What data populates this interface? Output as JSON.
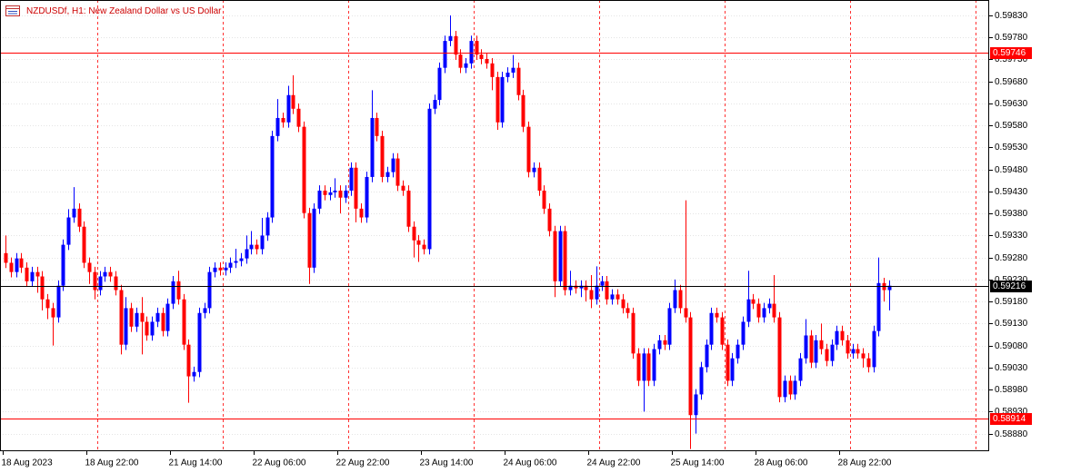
{
  "chart_data": {
    "type": "candlestick",
    "title": "NZDUSDf, H1:  New Zealand Dollar vs US Dollar",
    "categories": [
      "18 Aug 2023",
      null,
      null,
      null,
      null,
      null,
      null,
      null,
      null,
      null,
      null,
      null,
      null,
      null,
      null,
      null,
      "18 Aug 22:00",
      null,
      null,
      null,
      null,
      null,
      null,
      null,
      null,
      null,
      null,
      null,
      null,
      null,
      null,
      null,
      "21 Aug 14:00",
      null,
      null,
      null,
      null,
      null,
      null,
      null,
      null,
      null,
      null,
      null,
      null,
      null,
      null,
      null,
      "22 Aug 06:00",
      null,
      null,
      null,
      null,
      null,
      null,
      null,
      null,
      null,
      null,
      null,
      null,
      null,
      null,
      null,
      "22 Aug 22:00",
      null,
      null,
      null,
      null,
      null,
      null,
      null,
      null,
      null,
      null,
      null,
      null,
      null,
      null,
      null,
      "23 Aug 14:00",
      null,
      null,
      null,
      null,
      null,
      null,
      null,
      null,
      null,
      null,
      null,
      null,
      null,
      null,
      null,
      "24 Aug 06:00",
      null,
      null,
      null,
      null,
      null,
      null,
      null,
      null,
      null,
      null,
      null,
      null,
      null,
      null,
      null,
      "24 Aug 22:00",
      null,
      null,
      null,
      null,
      null,
      null,
      null,
      null,
      null,
      null,
      null,
      null,
      null,
      null,
      null,
      "25 Aug 14:00",
      null,
      null,
      null,
      null,
      null,
      null,
      null,
      null,
      null,
      null,
      null,
      null,
      null,
      null,
      null,
      "28 Aug 06:00",
      null,
      null,
      null,
      null,
      null,
      null,
      null,
      null,
      null,
      null,
      null,
      null,
      null,
      null,
      null,
      "28 Aug 22:00",
      null,
      null,
      null,
      null,
      null,
      null,
      null,
      null,
      null
    ],
    "open": [
      0.5929,
      0.59268,
      0.59247,
      0.59278,
      0.59257,
      0.59226,
      0.59247,
      0.59237,
      0.59185,
      0.59165,
      0.59144,
      0.59216,
      0.59309,
      0.59371,
      0.59391,
      0.5935,
      0.59268,
      0.59247,
      0.59206,
      0.59237,
      0.59247,
      0.59237,
      0.59206,
      0.59082,
      0.59165,
      0.59123,
      0.59154,
      0.59134,
      0.59103,
      0.59134,
      0.59154,
      0.59113,
      0.59175,
      0.59226,
      0.59185,
      0.59082,
      0.5901,
      0.5902,
      0.59154,
      0.59165,
      0.59247,
      0.59257,
      0.59251,
      0.59257,
      0.59268,
      0.59272,
      0.59278,
      0.59299,
      0.59309,
      0.59299,
      0.5933,
      0.59371,
      0.59556,
      0.59597,
      0.59587,
      0.59649,
      0.59618,
      0.59577,
      0.59381,
      0.59257,
      0.59391,
      0.59432,
      0.59422,
      0.59428,
      0.59432,
      0.59416,
      0.59432,
      0.59484,
      0.59391,
      0.59371,
      0.59463,
      0.59597,
      0.59556,
      0.59463,
      0.59474,
      0.59505,
      0.59443,
      0.59432,
      0.5935,
      0.59319,
      0.59309,
      0.59299,
      0.59618,
      0.59638,
      0.59711,
      0.59772,
      0.59783,
      0.59741,
      0.59711,
      0.59721,
      0.59772,
      0.59741,
      0.59731,
      0.59721,
      0.5969,
      0.59587,
      0.5969,
      0.597,
      0.59711,
      0.59649,
      0.59577,
      0.59474,
      0.59484,
      0.59432,
      0.59391,
      0.5934,
      0.59226,
      0.5934,
      0.59206,
      0.59216,
      0.5921,
      0.59216,
      0.59206,
      0.59185,
      0.59216,
      0.59226,
      0.59185,
      0.59196,
      0.59185,
      0.59165,
      0.59154,
      0.59062,
      0.59,
      0.59062,
      0.59,
      0.59072,
      0.59092,
      0.59082,
      0.59165,
      0.59206,
      0.59165,
      0.59144,
      0.58922,
      0.58969,
      0.59031,
      0.59082,
      0.59154,
      0.59144,
      0.59082,
      0.59,
      0.59051,
      0.59082,
      0.59134,
      0.59185,
      0.59175,
      0.59144,
      0.59165,
      0.59175,
      0.59144,
      0.58963,
      0.59,
      0.58969,
      0.59,
      0.59051,
      0.59103,
      0.59041,
      0.59092,
      0.59072,
      0.59045,
      0.59082,
      0.59113,
      0.59092,
      0.59062,
      0.59072,
      0.59062,
      0.59051,
      0.59031,
      0.59113,
      0.59222,
      0.59206
    ],
    "high": [
      0.5933,
      0.5928,
      0.5929,
      0.5929,
      0.59269,
      0.59259,
      0.59259,
      0.59249,
      0.59197,
      0.59177,
      0.59228,
      0.59321,
      0.5939,
      0.5944,
      0.59403,
      0.59362,
      0.5928,
      0.59259,
      0.59249,
      0.59259,
      0.59259,
      0.59249,
      0.59218,
      0.5919,
      0.59177,
      0.59166,
      0.5919,
      0.59146,
      0.59146,
      0.59166,
      0.59166,
      0.59187,
      0.59238,
      0.5925,
      0.59197,
      0.59094,
      0.59032,
      0.59166,
      0.59177,
      0.59259,
      0.59269,
      0.59269,
      0.59269,
      0.5928,
      0.593,
      0.5929,
      0.5933,
      0.5934,
      0.59321,
      0.5937,
      0.59383,
      0.59568,
      0.5964,
      0.59609,
      0.5967,
      0.59694,
      0.5963,
      0.59589,
      0.59393,
      0.59403,
      0.59444,
      0.59444,
      0.5944,
      0.5946,
      0.59444,
      0.59444,
      0.59496,
      0.59496,
      0.59403,
      0.59475,
      0.5966,
      0.59609,
      0.59568,
      0.59486,
      0.59517,
      0.59517,
      0.59455,
      0.59444,
      0.59362,
      0.59331,
      0.59321,
      0.5963,
      0.5965,
      0.59723,
      0.59784,
      0.5983,
      0.59795,
      0.59753,
      0.59733,
      0.59784,
      0.59784,
      0.59753,
      0.59743,
      0.59733,
      0.59702,
      0.59702,
      0.59712,
      0.5974,
      0.59723,
      0.59661,
      0.59589,
      0.59496,
      0.59496,
      0.59444,
      0.59403,
      0.59352,
      0.59352,
      0.59352,
      0.5925,
      0.59228,
      0.59228,
      0.59228,
      0.5924,
      0.5926,
      0.59238,
      0.59238,
      0.59208,
      0.59208,
      0.59197,
      0.59177,
      0.59166,
      0.59074,
      0.59074,
      0.59074,
      0.59084,
      0.59104,
      0.59104,
      0.59177,
      0.5923,
      0.59218,
      0.5941,
      0.59156,
      0.58981,
      0.59043,
      0.59094,
      0.59166,
      0.59166,
      0.59156,
      0.59094,
      0.59063,
      0.59094,
      0.59146,
      0.5925,
      0.59197,
      0.59187,
      0.59177,
      0.59187,
      0.5924,
      0.59156,
      0.59012,
      0.59012,
      0.59012,
      0.59063,
      0.5914,
      0.59115,
      0.59104,
      0.5913,
      0.59084,
      0.59094,
      0.59125,
      0.59125,
      0.59104,
      0.59084,
      0.59084,
      0.59074,
      0.59063,
      0.59125,
      0.5928,
      0.59234,
      0.59228
    ],
    "low": [
      0.59256,
      0.59235,
      0.59235,
      0.59245,
      0.59214,
      0.59214,
      0.592,
      0.5916,
      0.5914,
      0.5908,
      0.59132,
      0.59204,
      0.59297,
      0.59359,
      0.59338,
      0.59256,
      0.5922,
      0.59185,
      0.59194,
      0.59225,
      0.59225,
      0.59194,
      0.5906,
      0.5907,
      0.59111,
      0.59111,
      0.5906,
      0.59091,
      0.59091,
      0.59122,
      0.59101,
      0.59101,
      0.59163,
      0.59173,
      0.5907,
      0.5895,
      0.58998,
      0.59008,
      0.59142,
      0.59153,
      0.59235,
      0.59239,
      0.59239,
      0.59245,
      0.59256,
      0.5926,
      0.59266,
      0.59287,
      0.59287,
      0.59287,
      0.59318,
      0.59359,
      0.59544,
      0.59575,
      0.59575,
      0.59606,
      0.59565,
      0.59369,
      0.5922,
      0.59245,
      0.59379,
      0.5941,
      0.5941,
      0.59416,
      0.5938,
      0.59404,
      0.5942,
      0.5936,
      0.59359,
      0.59359,
      0.59451,
      0.59544,
      0.59451,
      0.59451,
      0.59462,
      0.59431,
      0.5942,
      0.59338,
      0.5928,
      0.5927,
      0.59287,
      0.59287,
      0.59606,
      0.59626,
      0.59699,
      0.5976,
      0.59729,
      0.59699,
      0.59699,
      0.59709,
      0.59729,
      0.59719,
      0.59709,
      0.5966,
      0.5957,
      0.59575,
      0.59678,
      0.59688,
      0.59637,
      0.59565,
      0.59462,
      0.59462,
      0.5942,
      0.59379,
      0.59328,
      0.5919,
      0.59214,
      0.59194,
      0.59194,
      0.59198,
      0.5919,
      0.5918,
      0.59165,
      0.59173,
      0.59204,
      0.59173,
      0.59173,
      0.59173,
      0.59153,
      0.59142,
      0.5905,
      0.58988,
      0.5893,
      0.58988,
      0.58988,
      0.5906,
      0.5907,
      0.5907,
      0.59154,
      0.59153,
      0.59132,
      0.58845,
      0.5888,
      0.58957,
      0.59019,
      0.5907,
      0.59132,
      0.5907,
      0.58988,
      0.58988,
      0.59039,
      0.5907,
      0.59122,
      0.59163,
      0.59132,
      0.59132,
      0.59153,
      0.59132,
      0.58951,
      0.58951,
      0.58957,
      0.58957,
      0.58988,
      0.59039,
      0.59029,
      0.59029,
      0.5906,
      0.59033,
      0.59033,
      0.5907,
      0.5908,
      0.5905,
      0.5905,
      0.5905,
      0.5903,
      0.59019,
      0.59019,
      0.59101,
      0.5918,
      0.5916
    ],
    "close": [
      0.59268,
      0.59247,
      0.59278,
      0.59257,
      0.59226,
      0.59247,
      0.59237,
      0.59185,
      0.59165,
      0.59144,
      0.59216,
      0.59309,
      0.59371,
      0.59391,
      0.5935,
      0.59268,
      0.59247,
      0.59206,
      0.59237,
      0.59247,
      0.59237,
      0.59206,
      0.59082,
      0.59165,
      0.59123,
      0.59154,
      0.59134,
      0.59103,
      0.59134,
      0.59154,
      0.59113,
      0.59175,
      0.59226,
      0.59185,
      0.59082,
      0.5901,
      0.5902,
      0.59154,
      0.59165,
      0.59247,
      0.59257,
      0.59251,
      0.59257,
      0.59268,
      0.59272,
      0.59278,
      0.59299,
      0.59309,
      0.59299,
      0.5933,
      0.59371,
      0.59556,
      0.59597,
      0.59587,
      0.59649,
      0.59618,
      0.59577,
      0.59381,
      0.59257,
      0.59391,
      0.59432,
      0.59422,
      0.59428,
      0.59432,
      0.59416,
      0.59432,
      0.59484,
      0.59391,
      0.59371,
      0.59463,
      0.59597,
      0.59556,
      0.59463,
      0.59474,
      0.59505,
      0.59443,
      0.59432,
      0.5935,
      0.59319,
      0.59309,
      0.59299,
      0.59618,
      0.59638,
      0.59711,
      0.59772,
      0.59783,
      0.59741,
      0.59711,
      0.59721,
      0.59772,
      0.59741,
      0.59731,
      0.59721,
      0.5969,
      0.59587,
      0.5969,
      0.597,
      0.59711,
      0.59649,
      0.59577,
      0.59474,
      0.59484,
      0.59432,
      0.59391,
      0.5934,
      0.59226,
      0.5934,
      0.59206,
      0.59216,
      0.5921,
      0.59216,
      0.59206,
      0.59185,
      0.59216,
      0.59226,
      0.59185,
      0.59196,
      0.59185,
      0.59165,
      0.59154,
      0.59062,
      0.59,
      0.59062,
      0.59,
      0.59072,
      0.59092,
      0.59082,
      0.59165,
      0.59206,
      0.59165,
      0.59144,
      0.58922,
      0.58969,
      0.59031,
      0.59082,
      0.59154,
      0.59144,
      0.59082,
      0.59,
      0.59051,
      0.59082,
      0.59134,
      0.59185,
      0.59175,
      0.59144,
      0.59165,
      0.59175,
      0.59144,
      0.58963,
      0.59,
      0.58969,
      0.59,
      0.59051,
      0.59103,
      0.59041,
      0.59092,
      0.59072,
      0.59045,
      0.59082,
      0.59113,
      0.59092,
      0.59062,
      0.59072,
      0.59062,
      0.59051,
      0.59031,
      0.59113,
      0.59222,
      0.59206,
      0.59216
    ],
    "up_color": "#0000ff",
    "down_color": "#ff0000",
    "ylim": [
      0.5884,
      0.59865
    ],
    "yticks": [
      {
        "value": 0.5983,
        "label": "0.59830"
      },
      {
        "value": 0.5978,
        "label": "0.59780"
      },
      {
        "value": 0.5973,
        "label": "0.59730"
      },
      {
        "value": 0.5968,
        "label": "0.59680"
      },
      {
        "value": 0.5963,
        "label": "0.59630"
      },
      {
        "value": 0.5958,
        "label": "0.59580"
      },
      {
        "value": 0.5953,
        "label": "0.59530"
      },
      {
        "value": 0.5948,
        "label": "0.59480"
      },
      {
        "value": 0.5943,
        "label": "0.59430"
      },
      {
        "value": 0.5938,
        "label": "0.59380"
      },
      {
        "value": 0.5933,
        "label": "0.59330"
      },
      {
        "value": 0.5928,
        "label": "0.59280"
      },
      {
        "value": 0.5923,
        "label": "0.59230"
      },
      {
        "value": 0.5918,
        "label": "0.59180"
      },
      {
        "value": 0.5913,
        "label": "0.59130"
      },
      {
        "value": 0.5908,
        "label": "0.59080"
      },
      {
        "value": 0.5903,
        "label": "0.59030"
      },
      {
        "value": 0.5898,
        "label": "0.58980"
      },
      {
        "value": 0.5893,
        "label": "0.58930"
      },
      {
        "value": 0.5888,
        "label": "0.58880"
      }
    ],
    "grid": true,
    "lines": [
      {
        "value": 0.59746,
        "color": "#ff0000"
      },
      {
        "value": 0.59216,
        "color": "#000000"
      },
      {
        "value": 0.58914,
        "color": "#ff0000"
      }
    ]
  }
}
